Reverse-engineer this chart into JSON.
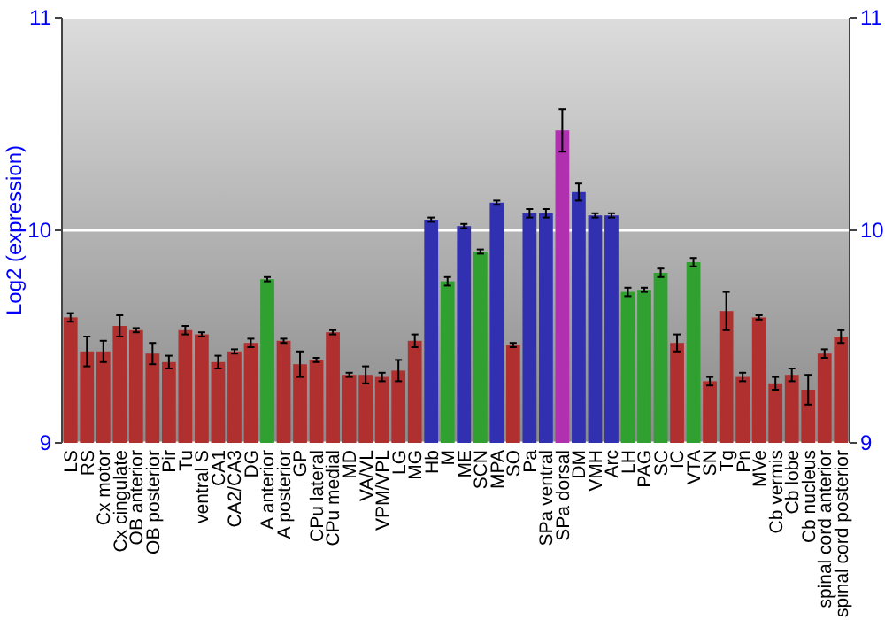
{
  "chart_data": {
    "type": "bar",
    "ylabel": "Log2 (expression)",
    "categories": [
      "LS",
      "RS",
      "Cx motor",
      "Cx cingulate",
      "OB anterior",
      "OB posterior",
      "Pir",
      "Tu",
      "ventral S",
      "CA1",
      "CA2/CA3",
      "DG",
      "A anterior",
      "A posterior",
      "GP",
      "CPu lateral",
      "CPu medial",
      "MD",
      "VA/VL",
      "VPM/VPL",
      "LG",
      "MG",
      "Hb",
      "M",
      "ME",
      "SCN",
      "MPA",
      "SO",
      "Pa",
      "SPa ventral",
      "SPa dorsal",
      "DM",
      "VMH",
      "Arc",
      "LH",
      "PAG",
      "SC",
      "IC",
      "VTA",
      "SN",
      "Tg",
      "Pn",
      "MVe",
      "Cb vermis",
      "Cb lobe",
      "Cb nucleus",
      "spinal cord anterior",
      "spinal cord posterior"
    ],
    "values": [
      9.59,
      9.43,
      9.43,
      9.55,
      9.53,
      9.42,
      9.38,
      9.53,
      9.51,
      9.38,
      9.43,
      9.47,
      9.77,
      9.48,
      9.37,
      9.39,
      9.52,
      9.32,
      9.32,
      9.31,
      9.34,
      9.48,
      10.05,
      9.76,
      10.02,
      9.9,
      10.13,
      9.46,
      10.08,
      10.08,
      10.47,
      10.18,
      10.07,
      10.07,
      9.71,
      9.72,
      9.8,
      9.47,
      9.85,
      9.29,
      9.62,
      9.31,
      9.59,
      9.28,
      9.32,
      9.25,
      9.42,
      9.5
    ],
    "errors": [
      0.02,
      0.07,
      0.05,
      0.05,
      0.01,
      0.05,
      0.03,
      0.02,
      0.01,
      0.03,
      0.01,
      0.02,
      0.01,
      0.01,
      0.06,
      0.01,
      0.01,
      0.01,
      0.04,
      0.02,
      0.05,
      0.03,
      0.01,
      0.02,
      0.01,
      0.01,
      0.01,
      0.01,
      0.02,
      0.02,
      0.1,
      0.04,
      0.01,
      0.01,
      0.02,
      0.01,
      0.02,
      0.04,
      0.02,
      0.02,
      0.09,
      0.02,
      0.01,
      0.03,
      0.03,
      0.07,
      0.02,
      0.03
    ],
    "colors": [
      "#b03030",
      "#b03030",
      "#b03030",
      "#b03030",
      "#b03030",
      "#b03030",
      "#b03030",
      "#b03030",
      "#b03030",
      "#b03030",
      "#b03030",
      "#b03030",
      "#30a030",
      "#b03030",
      "#b03030",
      "#b03030",
      "#b03030",
      "#b03030",
      "#b03030",
      "#b03030",
      "#b03030",
      "#b03030",
      "#3030b0",
      "#30a030",
      "#3030b0",
      "#30a030",
      "#3030b0",
      "#b03030",
      "#3030b0",
      "#3030b0",
      "#b030b0",
      "#3030b0",
      "#3030b0",
      "#3030b0",
      "#30a030",
      "#30a030",
      "#30a030",
      "#b03030",
      "#30a030",
      "#b03030",
      "#b03030",
      "#b03030",
      "#b03030",
      "#b03030",
      "#b03030",
      "#b03030",
      "#b03030",
      "#b03030"
    ],
    "ylim": [
      9,
      11
    ],
    "yticks": [
      9,
      10,
      11
    ],
    "y2lim": [
      9,
      11
    ],
    "y2ticks": [
      9,
      10,
      11
    ],
    "grid": "y"
  }
}
